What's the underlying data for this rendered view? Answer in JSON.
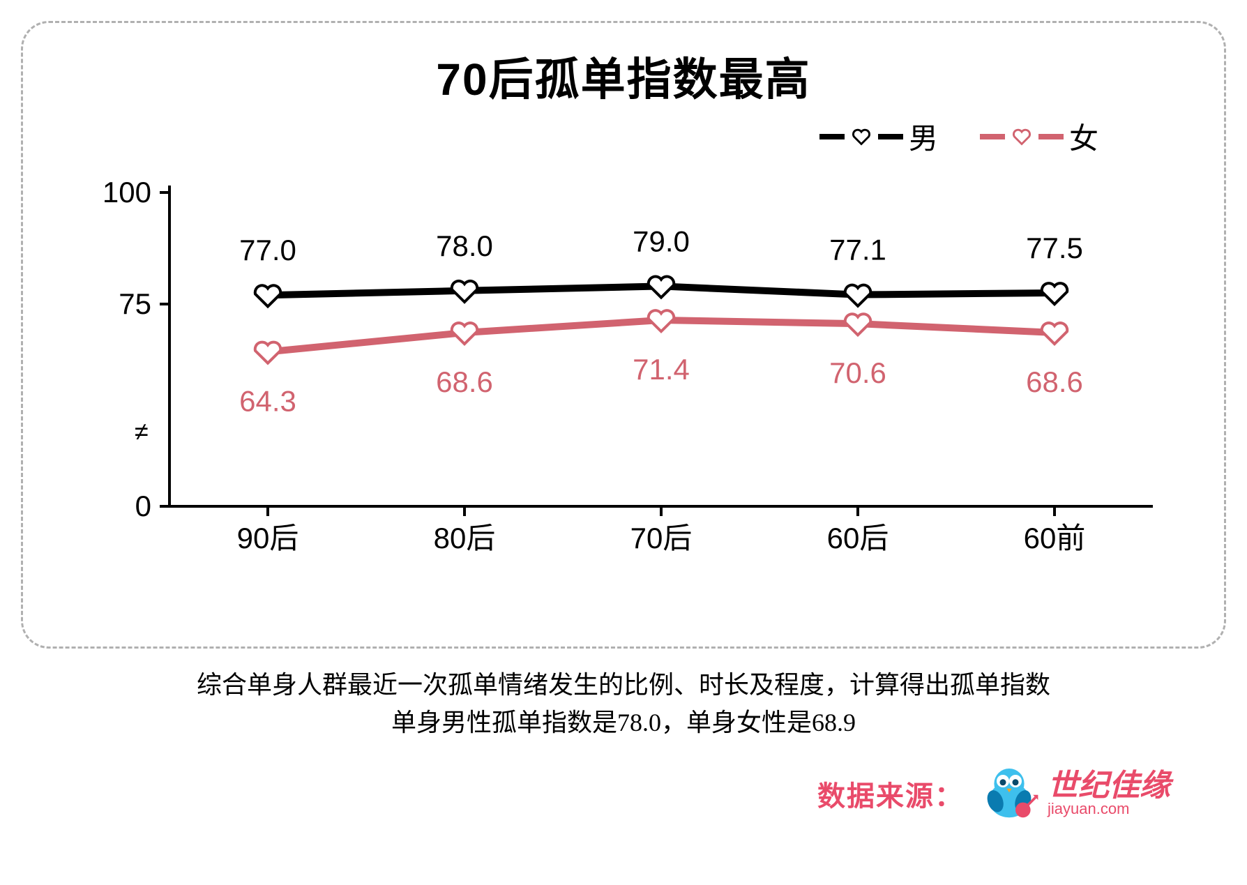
{
  "chart": {
    "type": "line",
    "title": "70后孤单指数最高",
    "categories": [
      "90后",
      "80后",
      "70后",
      "60后",
      "60前"
    ],
    "y_ticks": [
      0,
      75,
      100
    ],
    "ylim": [
      0,
      100
    ],
    "axis_color": "#000000",
    "background_color": "#ffffff",
    "border_color": "#b0b0b0",
    "title_fontsize": 64,
    "label_fontsize": 42,
    "line_width": 10,
    "marker": "heart",
    "legend": {
      "male": "男",
      "female": "女"
    },
    "series": {
      "male": {
        "label": "男",
        "color": "#000000",
        "heart_stroke": "#000000",
        "heart_fill": "#ffffff",
        "values": [
          77.0,
          78.0,
          79.0,
          77.1,
          77.5
        ],
        "display": [
          "77.0",
          "78.0",
          "79.0",
          "77.1",
          "77.5"
        ]
      },
      "female": {
        "label": "女",
        "color": "#d1636f",
        "heart_stroke": "#d1636f",
        "heart_fill": "#ffffff",
        "values": [
          64.3,
          68.6,
          71.4,
          70.6,
          68.6
        ],
        "display": [
          "64.3",
          "68.6",
          "71.4",
          "70.6",
          "68.6"
        ]
      }
    }
  },
  "caption": {
    "line1": "综合单身人群最近一次孤单情绪发生的比例、时长及程度，计算得出孤单指数",
    "line2": "单身男性孤单指数是78.0，单身女性是68.9"
  },
  "source": {
    "label": "数据来源：",
    "brand_cn": "世纪佳缘",
    "brand_en": "jiayuan.com",
    "label_color": "#e94b6a",
    "brand_color": "#e94b6a",
    "bird_body": "#3ec0ed",
    "bird_dark": "#0a7bb0"
  }
}
